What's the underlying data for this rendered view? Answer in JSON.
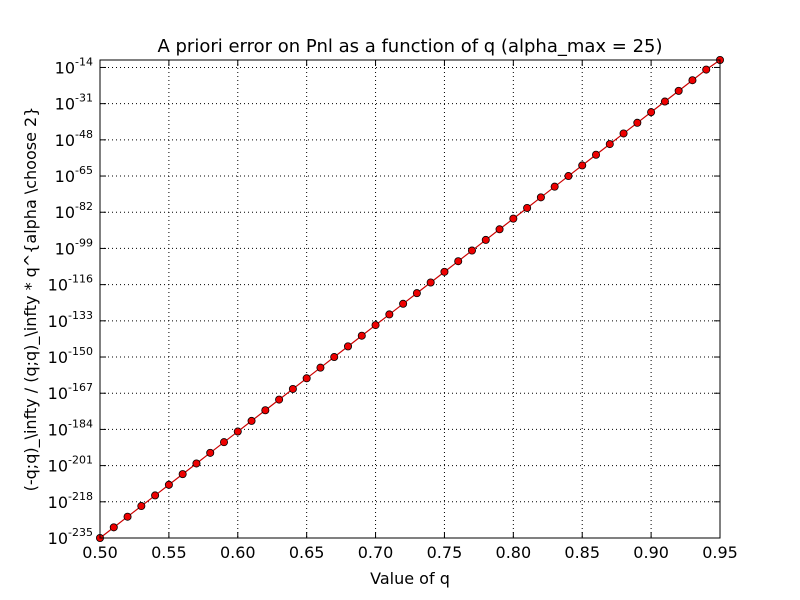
{
  "chart_data": {
    "type": "line",
    "title": "A priori error on Pnl as a function of q (alpha_max = 25)",
    "xlabel": "Value of q",
    "ylabel": "(-q;q)_\\infty / (q;q)_\\infty * q^{alpha \\choose 2}",
    "xlim": [
      0.5,
      0.95
    ],
    "ylim_log10": [
      -235,
      -10.5
    ],
    "y_scale": "log",
    "grid": true,
    "x_ticks": [
      "0.50",
      "0.55",
      "0.60",
      "0.65",
      "0.70",
      "0.75",
      "0.80",
      "0.85",
      "0.90",
      "0.95"
    ],
    "y_ticks": [
      {
        "base": "10",
        "exp": "-235"
      },
      {
        "base": "10",
        "exp": "-218"
      },
      {
        "base": "10",
        "exp": "-201"
      },
      {
        "base": "10",
        "exp": "-184"
      },
      {
        "base": "10",
        "exp": "-167"
      },
      {
        "base": "10",
        "exp": "-150"
      },
      {
        "base": "10",
        "exp": "-133"
      },
      {
        "base": "10",
        "exp": "-116"
      },
      {
        "base": "10",
        "exp": "-99"
      },
      {
        "base": "10",
        "exp": "-82"
      },
      {
        "base": "10",
        "exp": "-65"
      },
      {
        "base": "10",
        "exp": "-48"
      },
      {
        "base": "10",
        "exp": "-31"
      },
      {
        "base": "10",
        "exp": "-14"
      }
    ],
    "series": [
      {
        "line_color": "#cc0000",
        "marker_color": "#ee0000",
        "marker": "circle",
        "x": [
          0.5,
          0.51,
          0.52,
          0.53,
          0.54,
          0.55,
          0.56,
          0.57,
          0.58,
          0.59,
          0.6,
          0.61,
          0.62,
          0.63,
          0.64,
          0.65,
          0.66,
          0.67,
          0.68,
          0.69,
          0.7,
          0.71,
          0.72,
          0.73,
          0.74,
          0.75,
          0.76,
          0.77,
          0.78,
          0.79,
          0.8,
          0.81,
          0.82,
          0.83,
          0.84,
          0.85,
          0.86,
          0.87,
          0.88,
          0.89,
          0.9,
          0.91,
          0.92,
          0.93,
          0.94,
          0.95
        ],
        "log10_y": [
          -235.0,
          -230.0,
          -225.0,
          -220.0,
          -215.0,
          -210.0,
          -205.0,
          -200.0,
          -195.0,
          -190.0,
          -185.0,
          -180.0,
          -175.0,
          -170.0,
          -165.0,
          -160.0,
          -155.0,
          -150.0,
          -145.0,
          -140.0,
          -135.0,
          -130.0,
          -125.0,
          -120.0,
          -115.0,
          -110.0,
          -105.0,
          -100.0,
          -95.0,
          -90.0,
          -85.0,
          -80.0,
          -75.0,
          -70.0,
          -65.0,
          -60.0,
          -55.0,
          -50.0,
          -45.0,
          -40.0,
          -35.0,
          -30.0,
          -25.0,
          -20.0,
          -15.0,
          -10.5
        ]
      }
    ]
  }
}
